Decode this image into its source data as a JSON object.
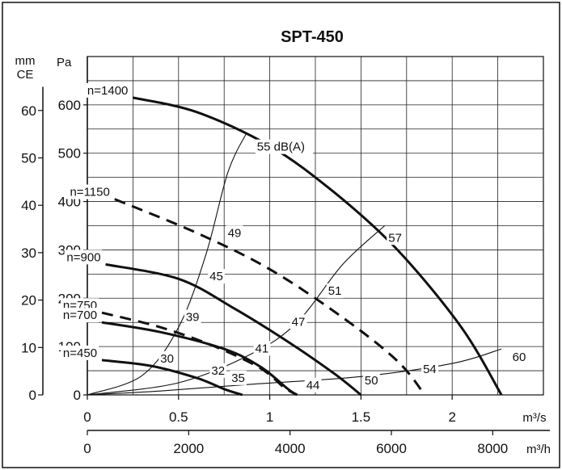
{
  "chart_data": {
    "type": "line",
    "title": "SPT-450",
    "axes": {
      "x_primary": {
        "unit": "m³/s",
        "range": [
          0,
          2.5
        ],
        "ticks": [
          {
            "value": 0,
            "label": "0"
          },
          {
            "value": 0.5,
            "label": "0.5"
          },
          {
            "value": 1,
            "label": "1"
          },
          {
            "value": 1.5,
            "label": "1.5"
          },
          {
            "value": 2,
            "label": "2"
          }
        ]
      },
      "x_secondary": {
        "unit": "m³/h",
        "ticks": [
          {
            "value": 0,
            "label": "0"
          },
          {
            "value": 2000,
            "label": "2000"
          },
          {
            "value": 4000,
            "label": "4000"
          },
          {
            "value": 6000,
            "label": "6000"
          },
          {
            "value": 8000,
            "label": "8000"
          }
        ]
      },
      "y_primary": {
        "unit": "Pa",
        "range": [
          0,
          700
        ],
        "ticks": [
          {
            "value": 0,
            "label": "0"
          },
          {
            "value": 100,
            "label": "100"
          },
          {
            "value": 200,
            "label": "200"
          },
          {
            "value": 300,
            "label": "300"
          },
          {
            "value": 400,
            "label": "400"
          },
          {
            "value": 500,
            "label": "500"
          },
          {
            "value": 600,
            "label": "600"
          }
        ]
      },
      "y_secondary": {
        "unit_lines": [
          "mm",
          "CE"
        ],
        "ticks": [
          {
            "value": 0,
            "label": "0"
          },
          {
            "value": 10,
            "label": "10"
          },
          {
            "value": 20,
            "label": "20"
          },
          {
            "value": 30,
            "label": "30"
          },
          {
            "value": 40,
            "label": "40"
          },
          {
            "value": 50,
            "label": "50"
          },
          {
            "value": 60,
            "label": "60"
          }
        ]
      },
      "grid": true
    },
    "series": [
      {
        "name": "n=1400",
        "style": "solid",
        "points": [
          [
            0.25,
            615
          ],
          [
            0.6,
            585
          ],
          [
            1.0,
            515
          ],
          [
            1.35,
            420
          ],
          [
            1.7,
            300
          ],
          [
            2.05,
            140
          ],
          [
            2.27,
            0
          ]
        ]
      },
      {
        "name": "n=1150",
        "style": "dashed",
        "points": [
          [
            0.15,
            405
          ],
          [
            0.6,
            335
          ],
          [
            1.0,
            260
          ],
          [
            1.4,
            160
          ],
          [
            1.7,
            70
          ],
          [
            1.85,
            0
          ]
        ]
      },
      {
        "name": "n=900",
        "style": "solid",
        "points": [
          [
            0.1,
            270
          ],
          [
            0.5,
            240
          ],
          [
            0.8,
            180
          ],
          [
            1.1,
            110
          ],
          [
            1.35,
            45
          ],
          [
            1.5,
            0
          ]
        ]
      },
      {
        "name": "n=750",
        "style": "dashed",
        "points": [
          [
            0.08,
            170
          ],
          [
            0.4,
            140
          ],
          [
            0.7,
            100
          ],
          [
            0.95,
            55
          ],
          [
            1.08,
            15
          ],
          [
            1.15,
            0
          ]
        ]
      },
      {
        "name": "n=700",
        "style": "solid",
        "points": [
          [
            0.08,
            150
          ],
          [
            0.4,
            130
          ],
          [
            0.75,
            95
          ],
          [
            0.95,
            58
          ],
          [
            1.1,
            12
          ],
          [
            1.15,
            0
          ]
        ]
      },
      {
        "name": "n=450",
        "style": "solid",
        "points": [
          [
            0.08,
            72
          ],
          [
            0.35,
            60
          ],
          [
            0.6,
            35
          ],
          [
            0.75,
            12
          ],
          [
            0.85,
            0
          ]
        ]
      }
    ],
    "sound_lines": [
      {
        "points": [
          [
            0.0,
            0
          ],
          [
            0.3,
            40
          ],
          [
            0.5,
            140
          ],
          [
            0.65,
            290
          ],
          [
            0.77,
            460
          ],
          [
            0.87,
            540
          ]
        ]
      },
      {
        "points": [
          [
            0.0,
            0
          ],
          [
            0.5,
            25
          ],
          [
            0.9,
            85
          ],
          [
            1.15,
            150
          ],
          [
            1.4,
            270
          ],
          [
            1.63,
            350
          ]
        ]
      },
      {
        "points": [
          [
            0.0,
            0
          ],
          [
            0.4,
            8
          ],
          [
            0.9,
            22
          ],
          [
            1.5,
            38
          ],
          [
            2.0,
            65
          ],
          [
            2.27,
            95
          ]
        ]
      }
    ],
    "annotations": [
      {
        "text": "55 dB(A)",
        "x": 0.93,
        "y": 505
      },
      {
        "text": "49",
        "x": 0.77,
        "y": 327
      },
      {
        "text": "57",
        "x": 1.65,
        "y": 317
      },
      {
        "text": "45",
        "x": 0.67,
        "y": 237
      },
      {
        "text": "51",
        "x": 1.32,
        "y": 207
      },
      {
        "text": "39",
        "x": 0.54,
        "y": 153
      },
      {
        "text": "47",
        "x": 1.12,
        "y": 143
      },
      {
        "text": "41",
        "x": 0.92,
        "y": 88
      },
      {
        "text": "30",
        "x": 0.4,
        "y": 67
      },
      {
        "text": "32",
        "x": 0.68,
        "y": 42
      },
      {
        "text": "35",
        "x": 0.79,
        "y": 27
      },
      {
        "text": "44",
        "x": 1.2,
        "y": 12
      },
      {
        "text": "50",
        "x": 1.52,
        "y": 22
      },
      {
        "text": "54",
        "x": 1.84,
        "y": 45
      },
      {
        "text": "60",
        "x": 2.33,
        "y": 70
      }
    ]
  }
}
